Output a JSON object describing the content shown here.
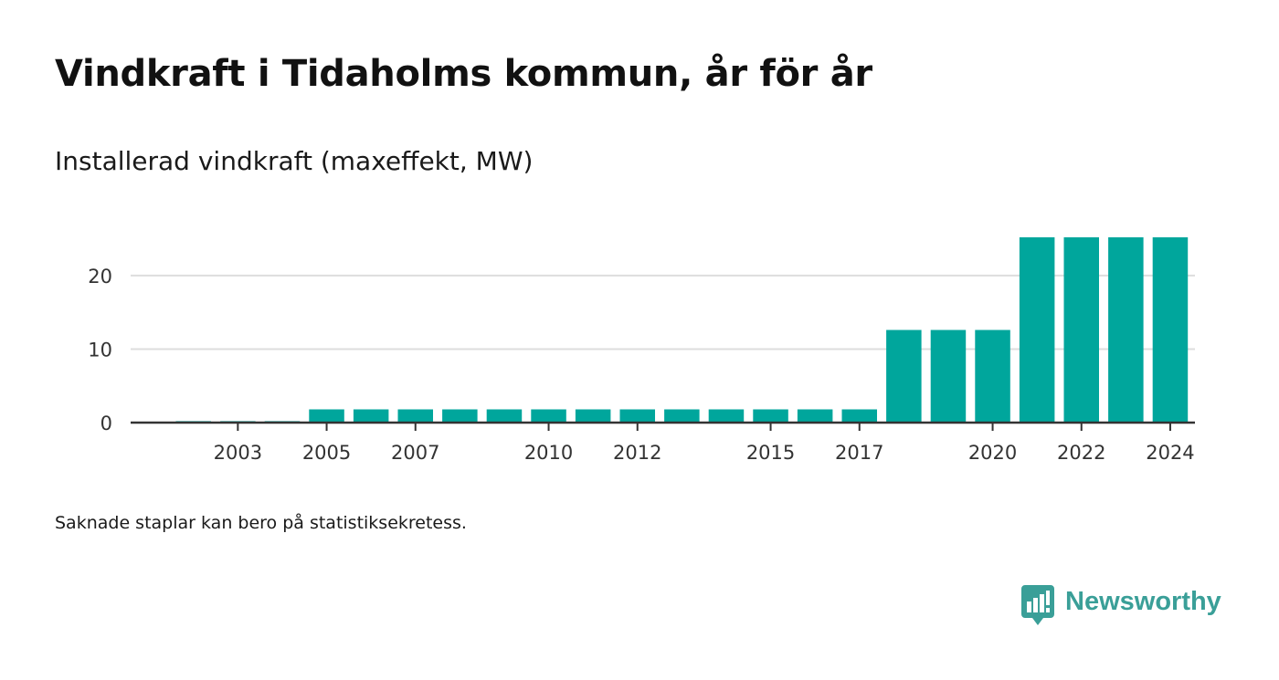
{
  "header": {
    "title": "Vindkraft i Tidaholms kommun, år för år",
    "subtitle": "Installerad vindkraft (maxeffekt, MW)"
  },
  "footer": {
    "note": "Saknade staplar kan bero på statistiksekretess.",
    "brand": "Newsworthy",
    "brand_icon": "bar-chart-bubble-icon"
  },
  "colors": {
    "bar": "#00a69c",
    "brand": "#3a9f98",
    "grid": "#dddddd",
    "axis": "#333333"
  },
  "chart_data": {
    "type": "bar",
    "categories": [
      "2002",
      "2003",
      "2004",
      "2005",
      "2006",
      "2007",
      "2008",
      "2009",
      "2010",
      "2011",
      "2012",
      "2013",
      "2014",
      "2015",
      "2016",
      "2017",
      "2018",
      "2019",
      "2020",
      "2021",
      "2022",
      "2023",
      "2024"
    ],
    "x_tick_labels": [
      "2003",
      "2005",
      "2007",
      "2010",
      "2012",
      "2015",
      "2017",
      "2020",
      "2022",
      "2024"
    ],
    "values": [
      0.2,
      0.2,
      0.2,
      1.8,
      1.8,
      1.8,
      1.8,
      1.8,
      1.8,
      1.8,
      1.8,
      1.8,
      1.8,
      1.8,
      1.8,
      1.8,
      12.6,
      12.6,
      12.6,
      25.2,
      25.2,
      25.2,
      25.2
    ],
    "ylim": [
      0,
      25.2
    ],
    "y_ticks": [
      0,
      10,
      20
    ],
    "grid": true,
    "legend": "none"
  }
}
